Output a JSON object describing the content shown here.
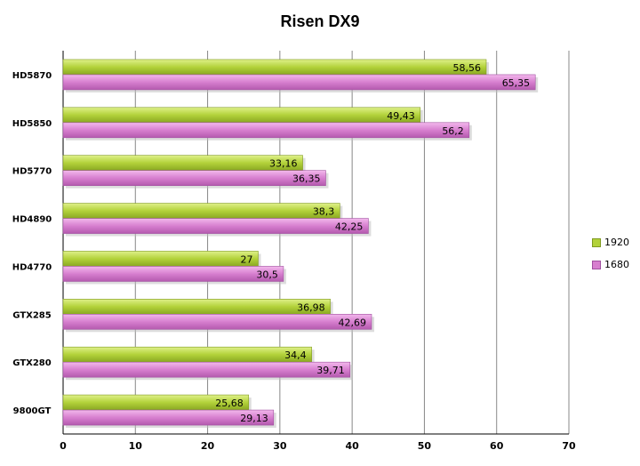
{
  "chart_data": {
    "type": "bar",
    "orientation": "horizontal",
    "title": "Risen DX9",
    "categories": [
      "HD5870",
      "HD5850",
      "HD5770",
      "HD4890",
      "HD4770",
      "GTX285",
      "GTX280",
      "9800GT"
    ],
    "series": [
      {
        "name": "1920",
        "color": "#b3d23a",
        "values": [
          58.56,
          49.43,
          33.16,
          38.3,
          27,
          36.98,
          34.4,
          25.68
        ],
        "labels": [
          "58,56",
          "49,43",
          "33,16",
          "38,3",
          "27",
          "36,98",
          "34,4",
          "25,68"
        ]
      },
      {
        "name": "1680",
        "color": "#d77fcf",
        "values": [
          65.35,
          56.2,
          36.35,
          42.25,
          30.5,
          42.69,
          39.71,
          29.13
        ],
        "labels": [
          "65,35",
          "56,2",
          "36,35",
          "42,25",
          "30,5",
          "42,69",
          "39,71",
          "29,13"
        ]
      }
    ],
    "xlim": [
      0,
      70
    ],
    "xticks": [
      "0",
      "10",
      "20",
      "30",
      "40",
      "50",
      "60",
      "70"
    ],
    "grid": true,
    "legend": "right"
  }
}
